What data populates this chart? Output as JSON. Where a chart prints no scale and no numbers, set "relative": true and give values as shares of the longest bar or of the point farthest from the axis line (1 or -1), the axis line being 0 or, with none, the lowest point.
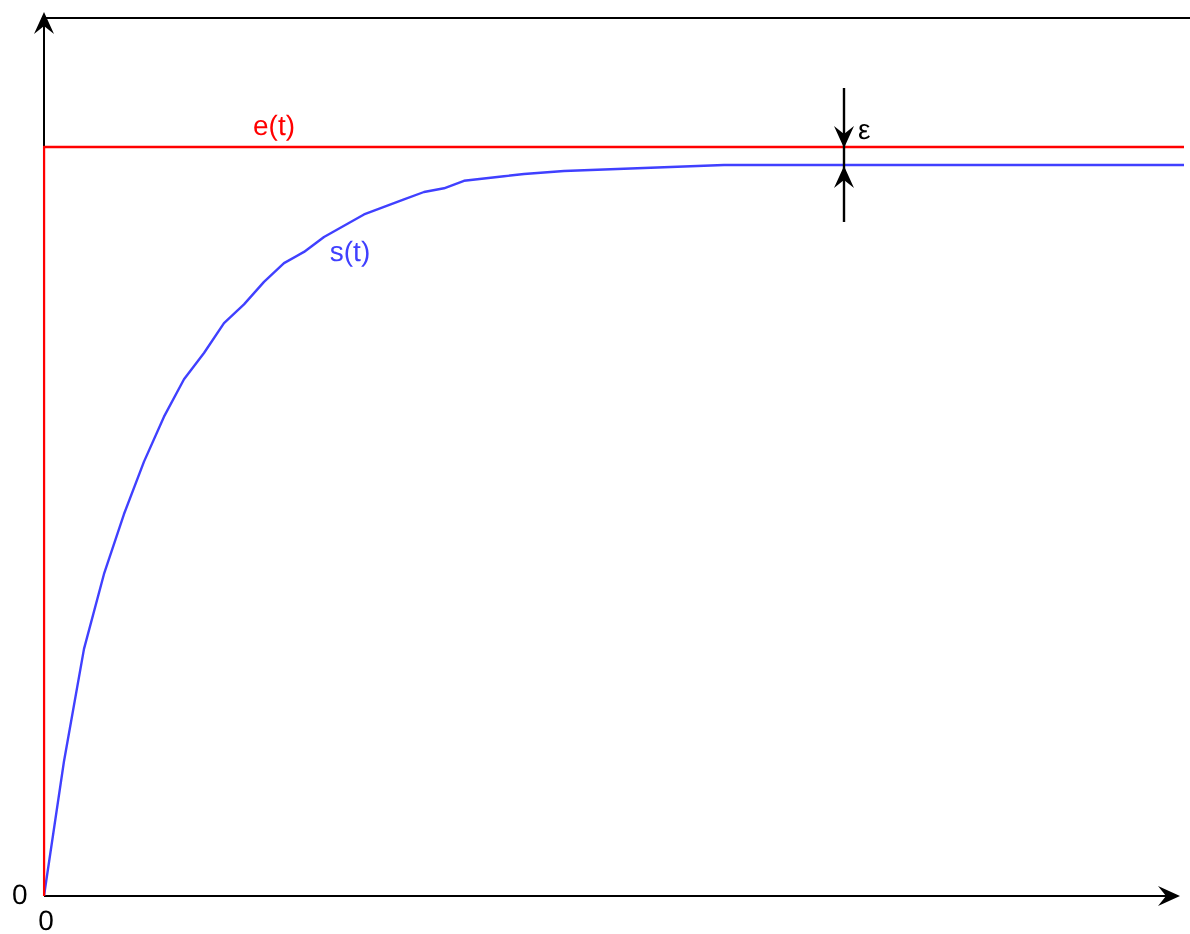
{
  "chart_data": {
    "type": "line",
    "relative": true,
    "legend": false,
    "categories": [
      null,
      null,
      null,
      null,
      null,
      null,
      null,
      null,
      null,
      null,
      null,
      null,
      null,
      null,
      null,
      null,
      null,
      null,
      null,
      null,
      null,
      null,
      null,
      null,
      null,
      null,
      null,
      null,
      null,
      null,
      null,
      null,
      null,
      null,
      null,
      null,
      null,
      null,
      null,
      null,
      null,
      null,
      null,
      null,
      null,
      null,
      null,
      null,
      null,
      null,
      null,
      null,
      null,
      null,
      null,
      null,
      null,
      null
    ],
    "series": [
      {
        "name": "e(t)",
        "type": "step",
        "color": "#ff0000",
        "values": [
          0,
          1,
          1,
          1,
          1,
          1,
          1,
          1,
          1,
          1,
          1,
          1,
          1,
          1,
          1,
          1,
          1,
          1,
          1,
          1,
          1,
          1,
          1,
          1,
          1,
          1,
          1,
          1,
          1,
          1,
          1,
          1,
          1,
          1,
          1,
          1,
          1,
          1,
          1,
          1,
          1,
          1,
          1,
          1,
          1,
          1,
          1,
          1,
          1,
          1,
          1,
          1,
          1,
          1,
          1,
          1,
          1,
          1
        ]
      },
      {
        "name": "s(t)",
        "type": "line",
        "color": "#4040ff",
        "values": [
          0,
          0.18,
          0.33,
          0.43,
          0.51,
          0.58,
          0.64,
          0.69,
          0.725,
          0.765,
          0.79,
          0.82,
          0.845,
          0.86,
          0.88,
          0.895,
          0.91,
          0.92,
          0.93,
          0.94,
          0.945,
          0.955,
          0.958,
          0.961,
          0.964,
          0.966,
          0.968,
          0.969,
          0.97,
          0.971,
          0.972,
          0.973,
          0.974,
          0.975,
          0.976,
          0.976,
          0.976,
          0.976,
          0.976,
          0.976,
          0.976,
          0.976,
          0.976,
          0.976,
          0.976,
          0.976,
          0.976,
          0.976,
          0.976,
          0.976,
          0.976,
          0.976,
          0.976,
          0.976,
          0.976,
          0.976,
          0.976,
          0.976
        ]
      }
    ],
    "annotations": [
      "0",
      "0",
      "ε"
    ]
  }
}
